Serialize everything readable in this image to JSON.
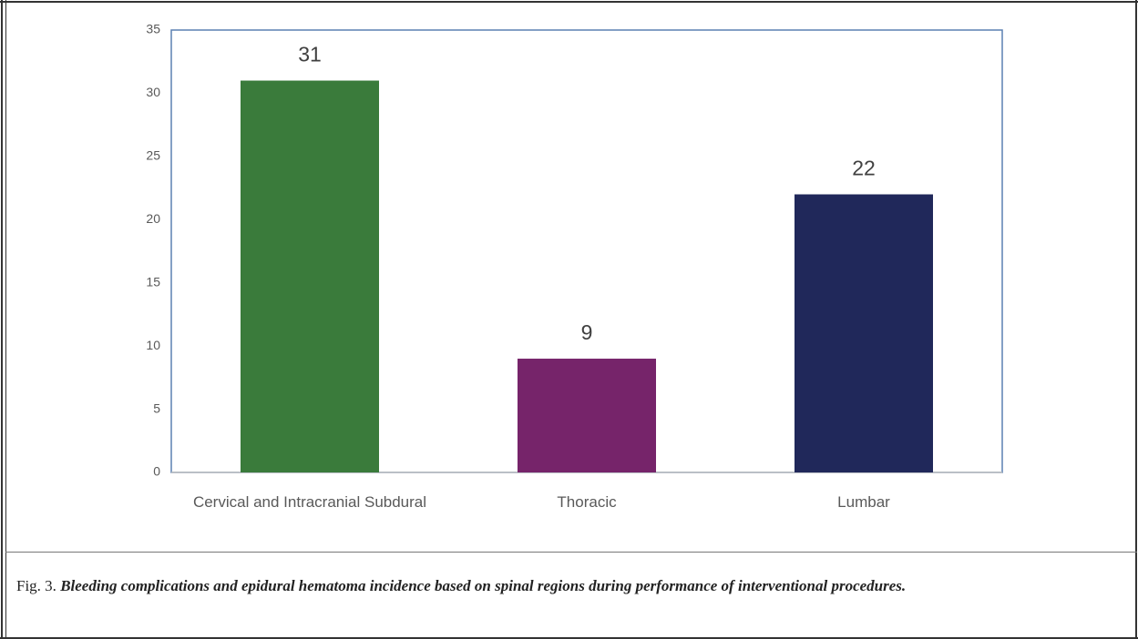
{
  "chart_data": {
    "type": "bar",
    "categories": [
      "Cervical and Intracranial Subdural",
      "Thoracic",
      "Lumbar"
    ],
    "values": [
      31,
      9,
      22
    ],
    "colors": [
      "#3a7b3b",
      "#76246a",
      "#20285a"
    ],
    "ylim": [
      0,
      35
    ],
    "yticks": [
      0,
      5,
      10,
      15,
      20,
      25,
      30,
      35
    ],
    "grid": false
  },
  "caption": {
    "label": "Fig. 3.",
    "text": "Bleeding complications and epidural hematoma incidence based on spinal regions during performance of  interventional procedures."
  }
}
